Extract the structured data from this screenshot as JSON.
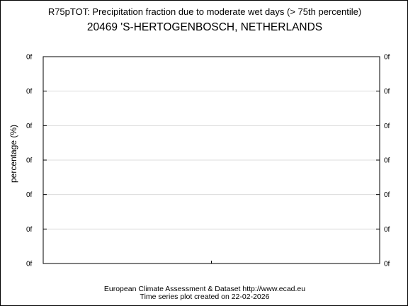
{
  "chart_data": {
    "type": "line",
    "title": "R75pTOT: Precipitation fraction due to moderate wet days (> 75th percentile)",
    "subtitle": "20469 'S-HERTOGENBOSCH, NETHERLANDS",
    "xlabel": "",
    "ylabel": "percentage (%)",
    "y_tick_labels": [
      "0f",
      "0f",
      "0f",
      "0f",
      "0f",
      "0f",
      "0f"
    ],
    "series": [],
    "grid": true
  },
  "footer": {
    "line1": "European Climate Assessment & Dataset  http://www.ecad.eu",
    "line2": "Time series plot created on 22-02-2026"
  }
}
